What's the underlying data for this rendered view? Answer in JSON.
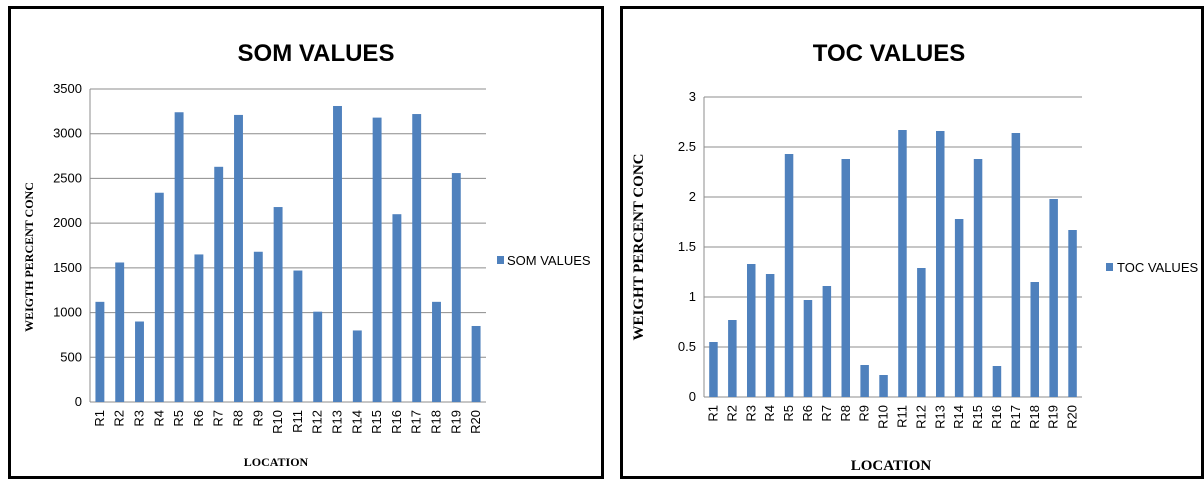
{
  "chart_data": [
    {
      "type": "bar",
      "title": "SOM VALUES",
      "xlabel": "LOCATION",
      "ylabel": "WEIGTH PERCENT CONC",
      "categories": [
        "R1",
        "R2",
        "R3",
        "R4",
        "R5",
        "R6",
        "R7",
        "R8",
        "R9",
        "R10",
        "R11",
        "R12",
        "R13",
        "R14",
        "R15",
        "R16",
        "R17",
        "R18",
        "R19",
        "R20"
      ],
      "series": [
        {
          "name": "SOM VALUES",
          "values": [
            1120,
            1560,
            900,
            2340,
            3240,
            1650,
            2630,
            3210,
            1680,
            2180,
            1470,
            1010,
            3310,
            800,
            3180,
            2100,
            3220,
            1120,
            2560,
            850
          ]
        }
      ],
      "ylim": [
        0,
        3500
      ],
      "yticks": [
        "0",
        "500",
        "1000",
        "1500",
        "2000",
        "2500",
        "3000",
        "3500"
      ],
      "legend": "right",
      "color": "#4f81bd",
      "grid": true
    },
    {
      "type": "bar",
      "title": "TOC VALUES",
      "xlabel": "LOCATION",
      "ylabel": "WEIGHT PERCENT CONC",
      "categories": [
        "R1",
        "R2",
        "R3",
        "R4",
        "R5",
        "R6",
        "R7",
        "R8",
        "R9",
        "R10",
        "R11",
        "R12",
        "R13",
        "R14",
        "R15",
        "R16",
        "R17",
        "R18",
        "R19",
        "R20"
      ],
      "series": [
        {
          "name": "TOC VALUES",
          "values": [
            0.55,
            0.77,
            1.33,
            1.23,
            2.43,
            0.97,
            1.11,
            2.38,
            0.32,
            0.22,
            2.67,
            1.29,
            2.66,
            1.78,
            2.38,
            0.31,
            2.64,
            1.15,
            1.98,
            1.67
          ]
        }
      ],
      "ylim": [
        0,
        3
      ],
      "yticks": [
        "0",
        "0.5",
        "1",
        "1.5",
        "2",
        "2.5",
        "3"
      ],
      "legend": "right",
      "color": "#4f81bd",
      "grid": true
    }
  ]
}
